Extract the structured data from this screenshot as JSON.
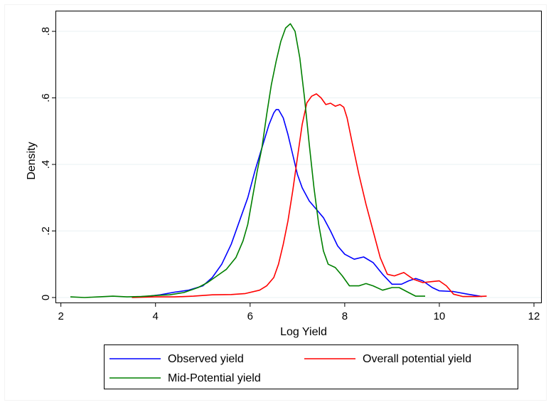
{
  "chart_data": {
    "type": "line",
    "xlabel": "Log Yield",
    "ylabel": "Density",
    "xlim": [
      1.9,
      12.15
    ],
    "ylim": [
      -0.015,
      0.86
    ],
    "xticks": [
      2,
      4,
      6,
      8,
      10,
      12
    ],
    "xtick_labels": [
      "2",
      "4",
      "6",
      "8",
      "10",
      "12"
    ],
    "yticks": [
      0,
      0.2,
      0.4,
      0.6,
      0.8
    ],
    "ytick_labels": [
      "0",
      ".2",
      ".4",
      ".6",
      ".8"
    ],
    "grid": "horizontal",
    "legend_position": "bottom",
    "series": [
      {
        "name": "Observed yield",
        "color": "#0000ff",
        "points": [
          [
            3.5,
            0.002
          ],
          [
            3.8,
            0.003
          ],
          [
            4.1,
            0.008
          ],
          [
            4.4,
            0.016
          ],
          [
            4.7,
            0.022
          ],
          [
            5.0,
            0.035
          ],
          [
            5.2,
            0.06
          ],
          [
            5.4,
            0.1
          ],
          [
            5.6,
            0.16
          ],
          [
            5.8,
            0.24
          ],
          [
            5.95,
            0.3
          ],
          [
            6.1,
            0.38
          ],
          [
            6.25,
            0.45
          ],
          [
            6.4,
            0.52
          ],
          [
            6.5,
            0.555
          ],
          [
            6.55,
            0.565
          ],
          [
            6.6,
            0.565
          ],
          [
            6.7,
            0.54
          ],
          [
            6.8,
            0.49
          ],
          [
            6.9,
            0.43
          ],
          [
            7.0,
            0.37
          ],
          [
            7.1,
            0.33
          ],
          [
            7.25,
            0.29
          ],
          [
            7.4,
            0.265
          ],
          [
            7.55,
            0.24
          ],
          [
            7.7,
            0.2
          ],
          [
            7.85,
            0.155
          ],
          [
            8.0,
            0.13
          ],
          [
            8.2,
            0.115
          ],
          [
            8.4,
            0.122
          ],
          [
            8.6,
            0.105
          ],
          [
            8.8,
            0.07
          ],
          [
            9.0,
            0.04
          ],
          [
            9.2,
            0.04
          ],
          [
            9.35,
            0.05
          ],
          [
            9.5,
            0.057
          ],
          [
            9.65,
            0.05
          ],
          [
            9.85,
            0.03
          ],
          [
            10.0,
            0.02
          ],
          [
            10.3,
            0.018
          ],
          [
            10.6,
            0.01
          ],
          [
            10.9,
            0.003
          ]
        ]
      },
      {
        "name": "Overall potential yield",
        "color": "#ff0000",
        "points": [
          [
            3.5,
            0.0
          ],
          [
            4.0,
            0.002
          ],
          [
            4.4,
            0.002
          ],
          [
            4.8,
            0.004
          ],
          [
            5.2,
            0.008
          ],
          [
            5.6,
            0.009
          ],
          [
            5.9,
            0.012
          ],
          [
            6.2,
            0.022
          ],
          [
            6.35,
            0.035
          ],
          [
            6.5,
            0.06
          ],
          [
            6.6,
            0.1
          ],
          [
            6.7,
            0.16
          ],
          [
            6.8,
            0.23
          ],
          [
            6.9,
            0.32
          ],
          [
            7.0,
            0.42
          ],
          [
            7.1,
            0.52
          ],
          [
            7.2,
            0.585
          ],
          [
            7.3,
            0.605
          ],
          [
            7.4,
            0.612
          ],
          [
            7.5,
            0.6
          ],
          [
            7.6,
            0.58
          ],
          [
            7.7,
            0.584
          ],
          [
            7.8,
            0.575
          ],
          [
            7.9,
            0.58
          ],
          [
            7.98,
            0.572
          ],
          [
            8.05,
            0.54
          ],
          [
            8.15,
            0.47
          ],
          [
            8.3,
            0.37
          ],
          [
            8.45,
            0.28
          ],
          [
            8.6,
            0.2
          ],
          [
            8.75,
            0.12
          ],
          [
            8.9,
            0.07
          ],
          [
            9.05,
            0.065
          ],
          [
            9.25,
            0.075
          ],
          [
            9.45,
            0.055
          ],
          [
            9.65,
            0.045
          ],
          [
            9.85,
            0.048
          ],
          [
            10.0,
            0.05
          ],
          [
            10.15,
            0.035
          ],
          [
            10.3,
            0.01
          ],
          [
            10.5,
            0.003
          ],
          [
            10.8,
            0.003
          ],
          [
            11.0,
            0.004
          ]
        ]
      },
      {
        "name": "Mid-Potential yield",
        "color": "#008000",
        "points": [
          [
            2.2,
            0.002
          ],
          [
            2.5,
            0.0
          ],
          [
            2.8,
            0.002
          ],
          [
            3.1,
            0.004
          ],
          [
            3.4,
            0.002
          ],
          [
            3.7,
            0.003
          ],
          [
            4.0,
            0.006
          ],
          [
            4.3,
            0.008
          ],
          [
            4.6,
            0.015
          ],
          [
            4.9,
            0.03
          ],
          [
            5.1,
            0.045
          ],
          [
            5.3,
            0.065
          ],
          [
            5.5,
            0.085
          ],
          [
            5.7,
            0.12
          ],
          [
            5.85,
            0.17
          ],
          [
            5.95,
            0.22
          ],
          [
            6.05,
            0.3
          ],
          [
            6.15,
            0.38
          ],
          [
            6.25,
            0.45
          ],
          [
            6.35,
            0.55
          ],
          [
            6.45,
            0.64
          ],
          [
            6.55,
            0.71
          ],
          [
            6.65,
            0.77
          ],
          [
            6.75,
            0.81
          ],
          [
            6.85,
            0.823
          ],
          [
            6.95,
            0.8
          ],
          [
            7.05,
            0.72
          ],
          [
            7.15,
            0.6
          ],
          [
            7.25,
            0.46
          ],
          [
            7.35,
            0.33
          ],
          [
            7.45,
            0.22
          ],
          [
            7.55,
            0.14
          ],
          [
            7.65,
            0.1
          ],
          [
            7.8,
            0.09
          ],
          [
            7.95,
            0.065
          ],
          [
            8.1,
            0.035
          ],
          [
            8.3,
            0.035
          ],
          [
            8.45,
            0.042
          ],
          [
            8.6,
            0.035
          ],
          [
            8.8,
            0.022
          ],
          [
            9.0,
            0.03
          ],
          [
            9.15,
            0.03
          ],
          [
            9.35,
            0.015
          ],
          [
            9.5,
            0.004
          ],
          [
            9.7,
            0.004
          ]
        ]
      }
    ],
    "legend": {
      "entries": [
        {
          "label": "Observed yield",
          "color": "#0000ff"
        },
        {
          "label": "Overall potential yield",
          "color": "#ff0000"
        },
        {
          "label": "Mid-Potential yield",
          "color": "#008000"
        }
      ]
    }
  }
}
